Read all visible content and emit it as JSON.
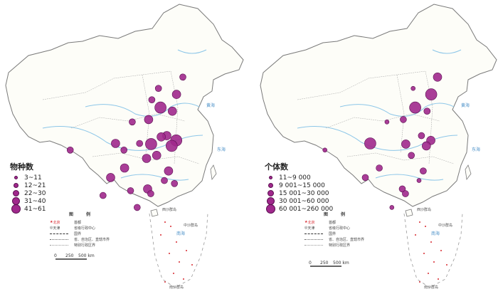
{
  "colors": {
    "province_label": "#d7282f",
    "water": "#8cc6e8",
    "boundary": "#7a7a7a",
    "marker": "#a0288c",
    "marker_stroke": "#5a1050"
  },
  "left_map": {
    "legend_title": "物种数",
    "legend_items": [
      "3~11",
      "12~21",
      "22~30",
      "31~40",
      "41~61"
    ],
    "key": {
      "title": "图　例",
      "capital_label": "北京",
      "capital_desc": "首都",
      "admin_label": "天津",
      "admin_desc": "省级行政中心",
      "national_boundary": "国界",
      "provincial_boundary": "省、自治区、直辖市界",
      "sar_boundary": "特别行政区界"
    },
    "scale": {
      "zero": "0",
      "mid": "250",
      "max": "500 km"
    },
    "sea_labels": [
      "黄海",
      "东海",
      "南海",
      "西沙群岛",
      "中沙群岛",
      "南沙群岛"
    ]
  },
  "right_map": {
    "legend_title": "个体数",
    "legend_items": [
      "11~9 000",
      "9 001~15 000",
      "15 001~30 000",
      "30 001~60 000",
      "60 001~260 000"
    ],
    "key": {
      "title": "图　例",
      "capital_label": "北京",
      "capital_desc": "首都",
      "admin_label": "天津",
      "admin_desc": "省级行政中心",
      "national_boundary": "国界",
      "provincial_boundary": "省、自治区、直辖市界",
      "sar_boundary": "特别行政区界"
    },
    "scale": {
      "zero": "0",
      "mid": "250",
      "max": "500 km"
    },
    "sea_labels": [
      "黄海",
      "东海",
      "南海",
      "西沙群岛",
      "中沙群岛",
      "南沙群岛"
    ]
  },
  "markers_left": [
    {
      "lon": 121.5,
      "lat": 31.2,
      "size": 5
    },
    {
      "lon": 120.2,
      "lat": 30.3,
      "size": 5
    },
    {
      "lon": 118.8,
      "lat": 32.0,
      "size": 4
    },
    {
      "lon": 117.2,
      "lat": 31.8,
      "size": 4
    },
    {
      "lon": 119.3,
      "lat": 26.1,
      "size": 4
    },
    {
      "lon": 114.3,
      "lat": 30.6,
      "size": 5
    },
    {
      "lon": 113.0,
      "lat": 28.2,
      "size": 4
    },
    {
      "lon": 115.9,
      "lat": 28.7,
      "size": 4
    },
    {
      "lon": 113.3,
      "lat": 23.1,
      "size": 4
    },
    {
      "lon": 108.4,
      "lat": 22.8,
      "size": 3
    },
    {
      "lon": 106.7,
      "lat": 26.6,
      "size": 4
    },
    {
      "lon": 104.1,
      "lat": 30.7,
      "size": 4
    },
    {
      "lon": 106.5,
      "lat": 29.6,
      "size": 3
    },
    {
      "lon": 102.7,
      "lat": 25.0,
      "size": 4
    },
    {
      "lon": 100.5,
      "lat": 22.0,
      "size": 3
    },
    {
      "lon": 117.0,
      "lat": 36.7,
      "size": 5
    },
    {
      "lon": 120.4,
      "lat": 36.1,
      "size": 4
    },
    {
      "lon": 116.4,
      "lat": 39.9,
      "size": 3
    },
    {
      "lon": 114.5,
      "lat": 38.0,
      "size": 3
    },
    {
      "lon": 113.6,
      "lat": 34.7,
      "size": 4
    },
    {
      "lon": 108.9,
      "lat": 34.3,
      "size": 3
    },
    {
      "lon": 123.4,
      "lat": 41.8,
      "size": 3
    },
    {
      "lon": 121.6,
      "lat": 38.9,
      "size": 4
    },
    {
      "lon": 110.3,
      "lat": 20.0,
      "size": 3
    },
    {
      "lon": 111.0,
      "lat": 30.7,
      "size": 3
    },
    {
      "lon": 118.1,
      "lat": 24.5,
      "size": 3
    },
    {
      "lon": 121.0,
      "lat": 24.0,
      "size": 3
    },
    {
      "lon": 91.1,
      "lat": 29.6,
      "size": 3
    },
    {
      "lon": 114.2,
      "lat": 22.3,
      "size": 3
    }
  ],
  "markers_right": [
    {
      "lon": 121.5,
      "lat": 31.2,
      "size": 4
    },
    {
      "lon": 120.2,
      "lat": 30.3,
      "size": 4
    },
    {
      "lon": 118.8,
      "lat": 32.0,
      "size": 3
    },
    {
      "lon": 117.0,
      "lat": 36.7,
      "size": 5
    },
    {
      "lon": 120.4,
      "lat": 36.1,
      "size": 3
    },
    {
      "lon": 114.3,
      "lat": 30.6,
      "size": 4
    },
    {
      "lon": 113.3,
      "lat": 23.1,
      "size": 3
    },
    {
      "lon": 119.3,
      "lat": 26.1,
      "size": 3
    },
    {
      "lon": 104.1,
      "lat": 30.7,
      "size": 5
    },
    {
      "lon": 102.7,
      "lat": 25.0,
      "size": 3
    },
    {
      "lon": 106.7,
      "lat": 26.6,
      "size": 3
    },
    {
      "lon": 123.4,
      "lat": 41.8,
      "size": 4
    },
    {
      "lon": 121.6,
      "lat": 38.9,
      "size": 5
    },
    {
      "lon": 116.4,
      "lat": 39.9,
      "size": 2
    },
    {
      "lon": 113.6,
      "lat": 34.7,
      "size": 3
    },
    {
      "lon": 108.9,
      "lat": 34.3,
      "size": 2
    },
    {
      "lon": 110.3,
      "lat": 20.0,
      "size": 2
    },
    {
      "lon": 115.9,
      "lat": 28.7,
      "size": 3
    },
    {
      "lon": 91.1,
      "lat": 29.6,
      "size": 2
    },
    {
      "lon": 114.2,
      "lat": 22.3,
      "size": 3
    },
    {
      "lon": 118.1,
      "lat": 24.5,
      "size": 2
    }
  ]
}
